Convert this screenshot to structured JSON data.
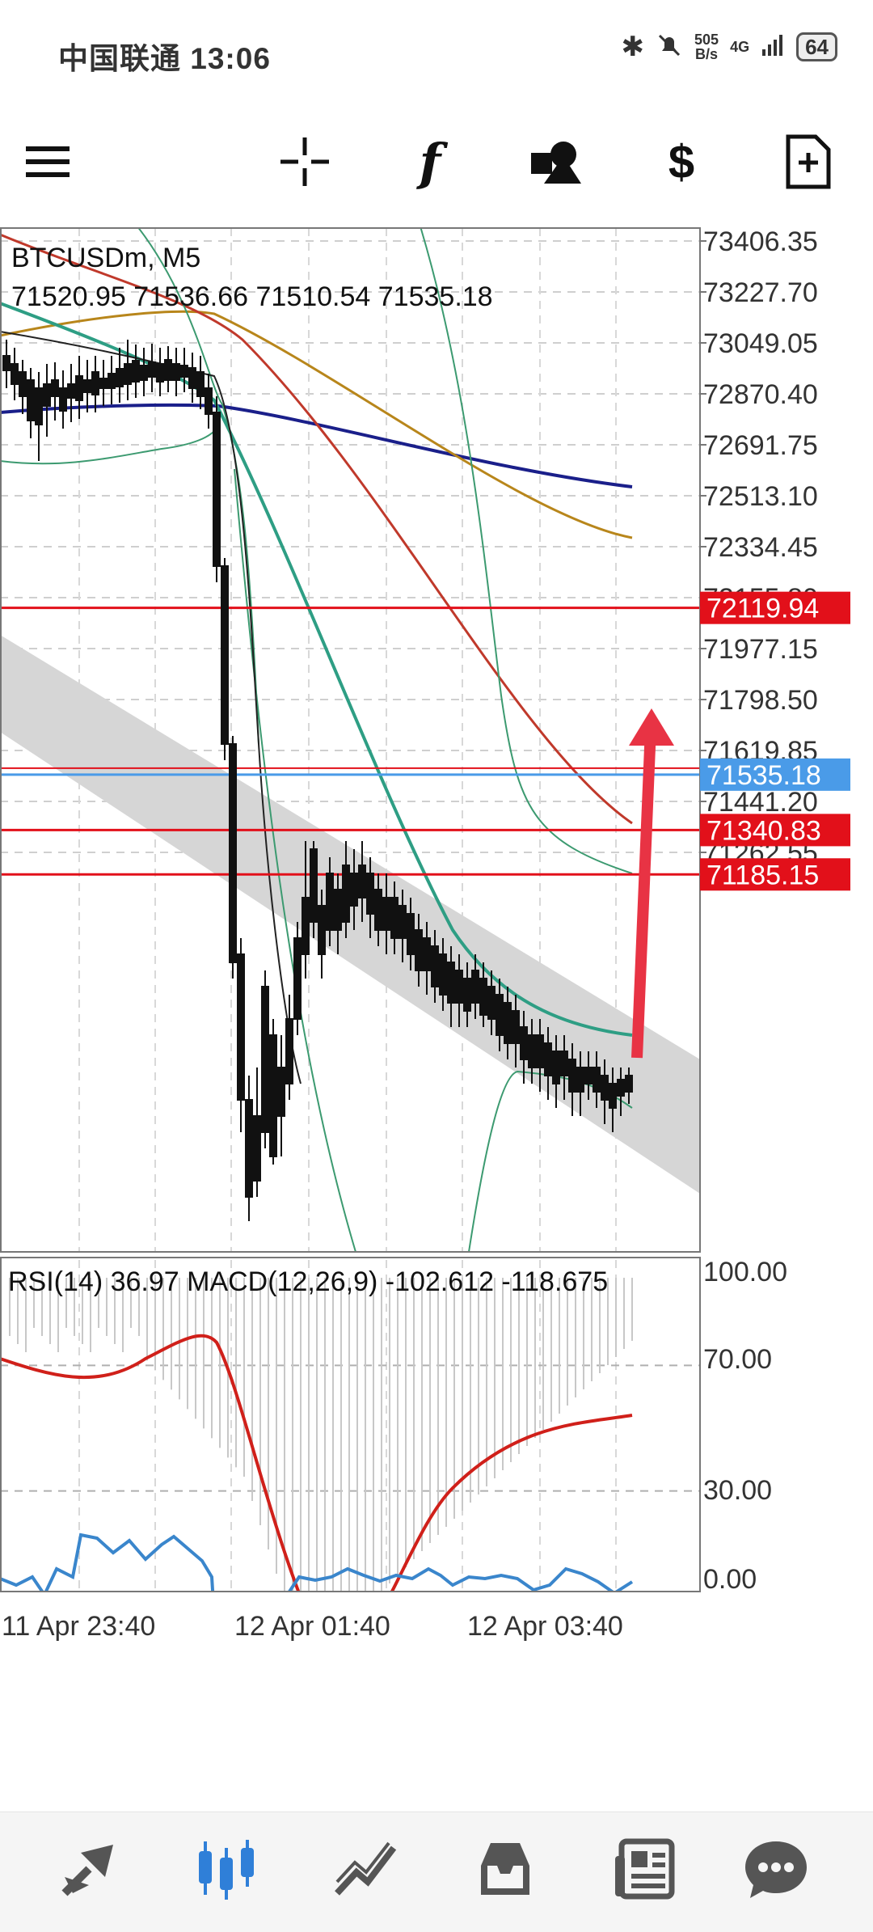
{
  "status_bar": {
    "carrier_time": "中国联通 13:06",
    "speed_top": "505",
    "speed_bottom": "B/s",
    "network": "4G",
    "battery": "64"
  },
  "toolbar": {
    "icons": [
      "menu-icon",
      "crosshair-icon",
      "indicator-f-icon",
      "objects-icon",
      "symbol-dollar-icon",
      "new-order-icon"
    ]
  },
  "chart": {
    "symbol_timeframe": "BTCUSDm, M5",
    "ohlc": "71520.95 71536.66 71510.54 71535.18",
    "price_ticks": [
      "73406.35",
      "73227.70",
      "73049.05",
      "72870.40",
      "72691.75",
      "72513.10",
      "72334.45",
      "72155.80",
      "71977.15",
      "71798.50",
      "71619.85",
      "71441.20",
      "71262.55"
    ],
    "price_min": 71180,
    "price_max": 73470,
    "line_labels": [
      {
        "value": "72119.94",
        "price": 72119.94,
        "color": "#e2101a"
      },
      {
        "value": "71535.18",
        "price": 71535.18,
        "color": "#4a9be8"
      },
      {
        "value": "71340.83",
        "price": 71340.83,
        "color": "#e2101a"
      },
      {
        "value": "71185.15",
        "price": 71185.15,
        "color": "#e2101a"
      }
    ],
    "colors": {
      "candle": "#111111",
      "sma_slow": "#1a1f8a",
      "sma_gold": "#b8861b",
      "sma_red": "#c0392b",
      "sma_teal": "#2e9e84",
      "bands": "#3c9a70",
      "channel": "#d6d6d6",
      "arrow": "#e83344"
    }
  },
  "indicator": {
    "label": "RSI(14) 36.97 MACD(12,26,9) -102.612 -118.675",
    "ticks": [
      "100.00",
      "70.00",
      "30.00",
      "0.00"
    ]
  },
  "time_axis": [
    "11 Apr 23:40",
    "12 Apr 01:40",
    "12 Apr 03:40"
  ],
  "bottom_nav": [
    "quotes-icon",
    "chart-icon",
    "trade-icon",
    "history-icon",
    "news-icon",
    "chat-icon"
  ]
}
